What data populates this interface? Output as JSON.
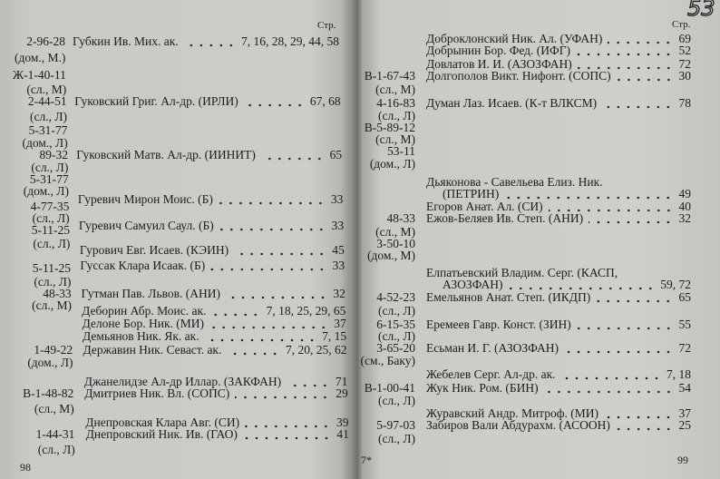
{
  "left_page": {
    "header": "Стр.",
    "page_number": "98",
    "phones": [
      "2-96-28",
      "(дом., М.)",
      "Ж-1-40-11",
      "(сл., М)",
      "2-44-51",
      "(сл., Л)",
      "5-31-77",
      "(дом., Л)",
      "89-32",
      "(сл., Л)",
      "5-31-77",
      "(дом., Л)",
      "4-77-35",
      "(сл., Л)",
      "5-11-25",
      "(сл., Л)",
      "5-11-25",
      "(сл., Л)",
      "48-33",
      "(сл., М)",
      "1-49-22",
      "(дом., Л)",
      "В-1-48-82",
      "(сл., М)",
      "1-44-31",
      "(сл., Л)"
    ],
    "entries": [
      {
        "name": "Губкин Ив. Мих. ак.",
        "pages": "7, 16, 28, 29, 44, 58"
      },
      {
        "name": "Гуковский Григ. Ал-др. (ИРЛИ)",
        "pages": "67, 68"
      },
      {
        "name": "Гуковский Матв. Ал-др. (ИИНИТ)",
        "pages": "65"
      },
      {
        "name": "Гуревич Мирон Моис. (Б)",
        "pages": "33"
      },
      {
        "name": "Гуревич Самуил Саул. (Б)",
        "pages": "33"
      },
      {
        "name": "Гурович Евг. Исаев. (КЭИН)",
        "pages": "45"
      },
      {
        "name": "Гуссак Клара Исаак. (Б)",
        "pages": "33"
      },
      {
        "name": "Гутман Пав. Львов. (АНИ)",
        "pages": "32"
      },
      {
        "name": "Деборин Абр. Моис. ак.",
        "pages": "7, 18, 25, 29, 65"
      },
      {
        "name": "Делоне Бор. Ник. (МИ)",
        "pages": "37"
      },
      {
        "name": "Демьянов Ник. Як. ак.",
        "pages": "7, 15"
      },
      {
        "name": "Державин Ник. Севаст. ак.",
        "pages": "7, 20, 25, 62"
      },
      {
        "name": "Джанелидзе Ал-др Иллар. (ЗАКФАН)",
        "pages": "71"
      },
      {
        "name": "Дмитриев Ник. Вл. (СОПС)",
        "pages": "29"
      },
      {
        "name": "Днепровская Клара Авг. (СИ)",
        "pages": "39"
      },
      {
        "name": "Днепровский Ник. Ив. (ГАО)",
        "pages": "41"
      }
    ]
  },
  "right_page": {
    "header": "Стр.",
    "handwritten_number": "53",
    "signature_mark": "7*",
    "page_number": "99",
    "phones": [
      "В-1-67-43",
      "(сл., М)",
      "4-16-83",
      "(сл., Л)",
      "В-5-89-12",
      "(сл., М)",
      "53-11",
      "(дом., Л)",
      "48-33",
      "(сл., М)",
      "3-50-10",
      "(дом., М)",
      "4-52-23",
      "(сл., Л)",
      "6-15-35",
      "(сл., Л)",
      "3-65-20",
      "(см., Баку)",
      "В-1-00-41",
      "(сл., Л)",
      "5-97-03",
      "(сл., Л)"
    ],
    "entries": [
      {
        "name": "Доброклонский Ник. Ал. (УФАН)",
        "pages": "69"
      },
      {
        "name": "Добрынин Бор. Фед. (ИФГ)",
        "pages": "52"
      },
      {
        "name": "Довлатов И. И. (АЗОЗФАН)",
        "pages": "72"
      },
      {
        "name": "Долгополов Викт. Нифонт. (СОПС)",
        "pages": "30"
      },
      {
        "name": "Думан Лаз. Исаев. (К-т ВЛКСМ)",
        "pages": "78"
      },
      {
        "name": "Дьяконова - Савельева Елиз. Ник.",
        "name_cont": "(ПЕТРИН)",
        "pages": "49"
      },
      {
        "name": "Егоров Анат. Ал. (СИ)",
        "pages": "40"
      },
      {
        "name": "Ежов-Беляев Ив. Степ. (АНИ)",
        "pages": "32"
      },
      {
        "name": "Елпатьевский Владим. Серг. (КАСП,",
        "name_cont": "АЗОЗФАН)",
        "pages": "59, 72"
      },
      {
        "name": "Емельянов Анат. Степ. (ИКДП)",
        "pages": "65"
      },
      {
        "name": "Еремеев Гавр. Конст. (ЗИН)",
        "pages": "55"
      },
      {
        "name": "Есьман И. Г. (АЗОЗФАН)",
        "pages": "72"
      },
      {
        "name": "Жебелев Серг. Ал-др. ак.",
        "pages": "7, 18"
      },
      {
        "name": "Жук Ник. Ром. (БИН)",
        "pages": "54"
      },
      {
        "name": "Журавский Андр. Митроф. (МИ)",
        "pages": "37"
      },
      {
        "name": "Забиров Вали Абдурахм. (АСООН)",
        "pages": "25"
      }
    ]
  }
}
